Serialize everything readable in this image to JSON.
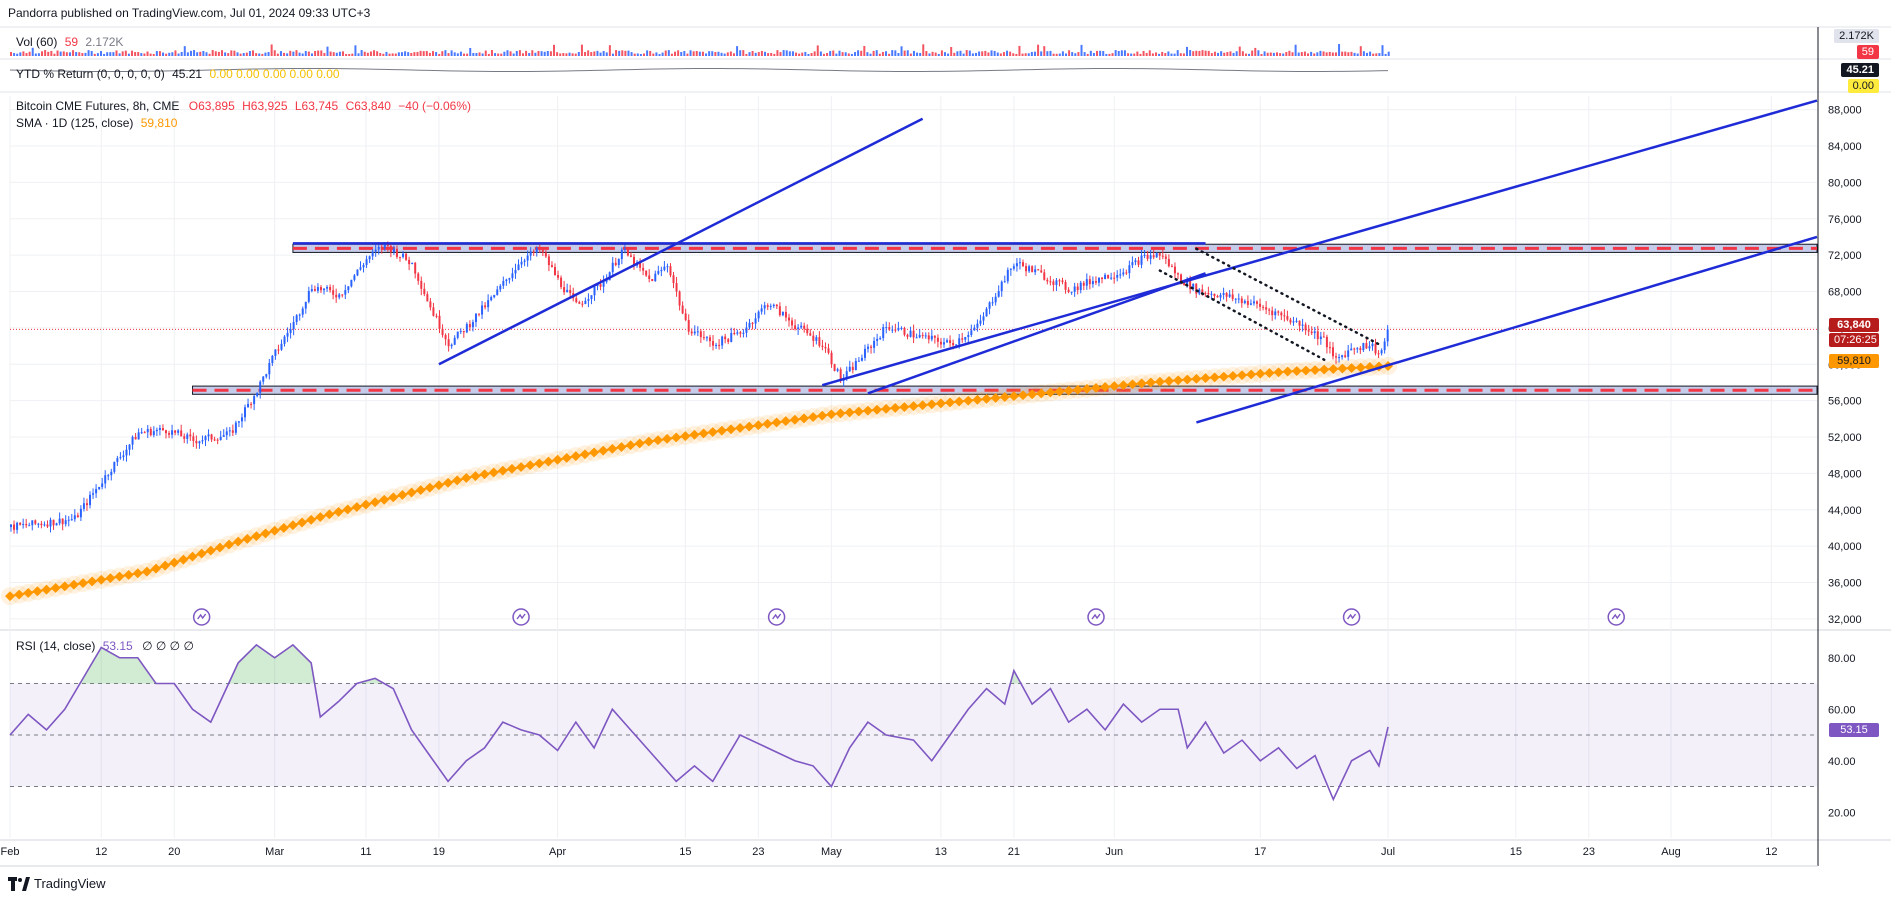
{
  "header": {
    "publisher_line": "Pandorra published on TradingView.com, Jul 01, 2024 09:33 UTC+3"
  },
  "footer": {
    "logo_text": "TradingView"
  },
  "colors": {
    "up": "#2962ff",
    "down": "#f23645",
    "sma": "#ff9800",
    "channel": "#1e2bd6",
    "rsi": "#7e57c2",
    "zone_fill": "#9fa8da",
    "zone_dash": "#f23645",
    "grid": "#eef0f4"
  },
  "volume_pane": {
    "legend_name": "Vol (60)",
    "legend_v1": "59",
    "legend_v2": "2.172K",
    "axis_tags": [
      "2.172K",
      "59"
    ]
  },
  "ytd_pane": {
    "legend_name": "YTD % Return (0, 0, 0, 0, 0)",
    "legend_v1": "45.21",
    "legend_vals": "0.00  0.00  0.00  0.00  0.00",
    "axis_tags": [
      "45.21",
      "0.00"
    ]
  },
  "price_pane": {
    "legend_title": "Bitcoin CME Futures, 8h, CME",
    "ohlc": {
      "o": "O63,895",
      "h": "H63,925",
      "l": "L63,745",
      "c": "C63,840",
      "chg": "−40 (−0.06%)"
    },
    "sma_name": "SMA · 1D (125, close)",
    "sma_value": "59,810",
    "price_tag": "63,840",
    "countdown_tag": "07:26:25",
    "sma_tag": "59,810"
  },
  "rsi_pane": {
    "legend_name": "RSI (14, close)",
    "legend_value": "53.15",
    "legend_extra": "∅  ∅  ∅  ∅",
    "tag": "53.15"
  },
  "chart_data": {
    "type": "candlestick",
    "title": "Bitcoin CME Futures, 8h, CME",
    "price_axis": {
      "ylim": [
        31000,
        89500
      ],
      "ticks": [
        32000,
        36000,
        40000,
        44000,
        48000,
        52000,
        56000,
        60000,
        64000,
        68000,
        72000,
        76000,
        80000,
        84000,
        88000
      ],
      "tick_labels": [
        "32,000",
        "36,000",
        "40,000",
        "44,000",
        "48,000",
        "52,000",
        "56,000",
        "60,000",
        "64,000",
        "68,000",
        "72,000",
        "76,000",
        "80,000",
        "84,000",
        "88,000"
      ]
    },
    "rsi_axis": {
      "ylim": [
        10,
        90
      ],
      "ticks": [
        20,
        40,
        60,
        80
      ],
      "tick_labels": [
        "20.00",
        "40.00",
        "60.00",
        "80.00"
      ],
      "upper_band": 70,
      "mid": 50,
      "lower_band": 30
    },
    "x_axis": {
      "day_range": [
        0,
        198
      ],
      "ticks": [
        {
          "d": 0,
          "label": "Feb"
        },
        {
          "d": 10,
          "label": "12"
        },
        {
          "d": 18,
          "label": "20"
        },
        {
          "d": 29,
          "label": "Mar"
        },
        {
          "d": 39,
          "label": "11"
        },
        {
          "d": 47,
          "label": "19"
        },
        {
          "d": 60,
          "label": "Apr"
        },
        {
          "d": 74,
          "label": "15"
        },
        {
          "d": 82,
          "label": "23"
        },
        {
          "d": 90,
          "label": "May"
        },
        {
          "d": 102,
          "label": "13"
        },
        {
          "d": 110,
          "label": "21"
        },
        {
          "d": 121,
          "label": "Jun"
        },
        {
          "d": 137,
          "label": "17"
        },
        {
          "d": 151,
          "label": "Jul"
        },
        {
          "d": 165,
          "label": "15"
        },
        {
          "d": 173,
          "label": "23"
        },
        {
          "d": 182,
          "label": "Aug"
        },
        {
          "d": 193,
          "label": "12"
        }
      ]
    },
    "price_path": [
      [
        0,
        42100
      ],
      [
        4,
        42600
      ],
      [
        7,
        43000
      ],
      [
        9,
        45800
      ],
      [
        11,
        48600
      ],
      [
        14,
        52500
      ],
      [
        17,
        52800
      ],
      [
        20,
        51600
      ],
      [
        24,
        52300
      ],
      [
        27,
        57200
      ],
      [
        29,
        61300
      ],
      [
        31,
        64600
      ],
      [
        33,
        68600
      ],
      [
        36,
        67600
      ],
      [
        39,
        71600
      ],
      [
        41,
        73200
      ],
      [
        44,
        71000
      ],
      [
        46,
        66200
      ],
      [
        48,
        62200
      ],
      [
        50,
        64200
      ],
      [
        53,
        67600
      ],
      [
        56,
        71600
      ],
      [
        58,
        72600
      ],
      [
        60,
        69200
      ],
      [
        62,
        66400
      ],
      [
        65,
        69200
      ],
      [
        67,
        72600
      ],
      [
        70,
        69200
      ],
      [
        72,
        71000
      ],
      [
        74,
        64200
      ],
      [
        77,
        62200
      ],
      [
        80,
        63500
      ],
      [
        83,
        66800
      ],
      [
        86,
        64200
      ],
      [
        89,
        62200
      ],
      [
        91,
        58200
      ],
      [
        93,
        60600
      ],
      [
        96,
        64200
      ],
      [
        99,
        63200
      ],
      [
        103,
        62200
      ],
      [
        106,
        64200
      ],
      [
        108,
        68000
      ],
      [
        110,
        71200
      ],
      [
        113,
        69800
      ],
      [
        116,
        68200
      ],
      [
        119,
        69400
      ],
      [
        122,
        70300
      ],
      [
        124,
        71700
      ],
      [
        126,
        72100
      ],
      [
        128,
        69500
      ],
      [
        130,
        68100
      ],
      [
        133,
        67500
      ],
      [
        136,
        66700
      ],
      [
        139,
        65500
      ],
      [
        142,
        64000
      ],
      [
        144,
        62600
      ],
      [
        145,
        60400
      ],
      [
        147,
        61800
      ],
      [
        149,
        62200
      ],
      [
        150,
        61000
      ],
      [
        151,
        63840
      ]
    ],
    "sma_125": [
      [
        0,
        34500
      ],
      [
        15,
        37200
      ],
      [
        25,
        40500
      ],
      [
        35,
        43500
      ],
      [
        50,
        47500
      ],
      [
        70,
        51500
      ],
      [
        90,
        54500
      ],
      [
        110,
        56500
      ],
      [
        125,
        58000
      ],
      [
        140,
        59200
      ],
      [
        151,
        59810
      ]
    ],
    "rsi_path": [
      [
        0,
        50
      ],
      [
        2,
        58
      ],
      [
        4,
        52
      ],
      [
        6,
        60
      ],
      [
        8,
        72
      ],
      [
        10,
        84
      ],
      [
        12,
        80
      ],
      [
        14,
        80
      ],
      [
        16,
        70
      ],
      [
        18,
        70
      ],
      [
        20,
        60
      ],
      [
        22,
        55
      ],
      [
        25,
        78
      ],
      [
        27,
        85
      ],
      [
        29,
        80
      ],
      [
        31,
        85
      ],
      [
        33,
        78
      ],
      [
        34,
        57
      ],
      [
        36,
        63
      ],
      [
        38,
        70
      ],
      [
        40,
        72
      ],
      [
        42,
        68
      ],
      [
        44,
        52
      ],
      [
        46,
        42
      ],
      [
        48,
        32
      ],
      [
        50,
        40
      ],
      [
        52,
        45
      ],
      [
        54,
        55
      ],
      [
        56,
        52
      ],
      [
        58,
        50
      ],
      [
        60,
        44
      ],
      [
        62,
        55
      ],
      [
        64,
        45
      ],
      [
        66,
        60
      ],
      [
        68,
        52
      ],
      [
        71,
        40
      ],
      [
        73,
        32
      ],
      [
        75,
        38
      ],
      [
        77,
        32
      ],
      [
        80,
        50
      ],
      [
        83,
        45
      ],
      [
        86,
        40
      ],
      [
        88,
        38
      ],
      [
        90,
        30
      ],
      [
        92,
        45
      ],
      [
        94,
        55
      ],
      [
        96,
        50
      ],
      [
        99,
        48
      ],
      [
        101,
        40
      ],
      [
        103,
        50
      ],
      [
        105,
        60
      ],
      [
        107,
        68
      ],
      [
        109,
        62
      ],
      [
        110,
        75
      ],
      [
        112,
        62
      ],
      [
        114,
        68
      ],
      [
        116,
        55
      ],
      [
        118,
        60
      ],
      [
        120,
        52
      ],
      [
        122,
        62
      ],
      [
        124,
        55
      ],
      [
        126,
        60
      ],
      [
        128,
        60
      ],
      [
        129,
        45
      ],
      [
        131,
        55
      ],
      [
        133,
        43
      ],
      [
        135,
        48
      ],
      [
        137,
        40
      ],
      [
        139,
        45
      ],
      [
        141,
        37
      ],
      [
        143,
        42
      ],
      [
        145,
        25
      ],
      [
        147,
        40
      ],
      [
        149,
        44
      ],
      [
        150,
        38
      ],
      [
        151,
        53.15
      ]
    ],
    "resistance_zone": [
      72300,
      73200
    ],
    "support_zone": [
      56700,
      57600
    ],
    "channel_lines": [
      [
        [
          47,
          60000
        ],
        [
          100,
          87000
        ]
      ],
      [
        [
          89,
          57700
        ],
        [
          198,
          89000
        ]
      ],
      [
        [
          130,
          53600
        ],
        [
          198,
          74000
        ]
      ],
      [
        [
          94,
          56800
        ],
        [
          131,
          70000
        ]
      ],
      [
        [
          31,
          73300
        ],
        [
          131,
          73300
        ]
      ]
    ],
    "wedge_lines": [
      [
        [
          130,
          72700
        ],
        [
          150,
          62200
        ]
      ],
      [
        [
          126,
          70300
        ],
        [
          144,
          60500
        ]
      ]
    ],
    "event_markers": [
      21,
      56,
      84,
      119,
      147,
      176
    ]
  }
}
